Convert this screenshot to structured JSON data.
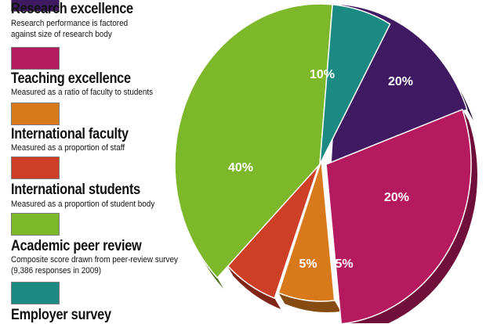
{
  "chart_data": {
    "type": "pie",
    "legend_position": "left",
    "slices": [
      {
        "name": "Research excellence",
        "description": "Research performance is factored against size of research body",
        "value": 20,
        "label": "20%",
        "color": "#3f1a62"
      },
      {
        "name": "Teaching excellence",
        "description": "Measured as a ratio of faculty to students",
        "value": 20,
        "label": "20%",
        "color": "#b5195e"
      },
      {
        "name": "International faculty",
        "description": "Measured as a proportion of staff",
        "value": 5,
        "label": "5%",
        "color": "#d8791c"
      },
      {
        "name": "International students",
        "description": "Measured as a proportion of student body",
        "value": 5,
        "label": "5%",
        "color": "#cf3e26"
      },
      {
        "name": "Academic peer review",
        "description": "Composite score drawn from peer-review survey (9,386 responses in 2009)",
        "value": 40,
        "label": "40%",
        "color": "#7cb82a"
      },
      {
        "name": "Employer survey",
        "description": "",
        "value": 10,
        "label": "10%",
        "color": "#1a8a83"
      }
    ]
  }
}
